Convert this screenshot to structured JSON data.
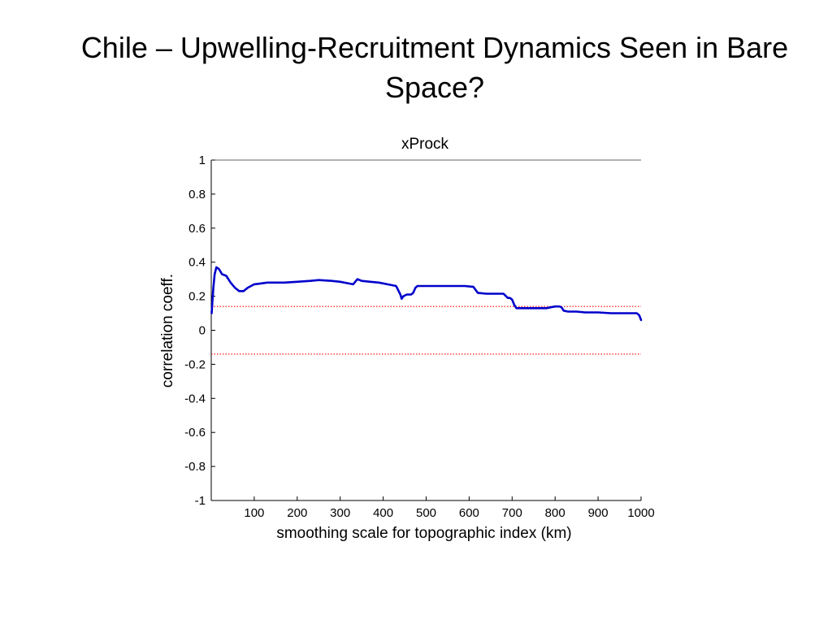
{
  "slide": {
    "title": "Chile – Upwelling-Recruitment Dynamics Seen in Bare Space?"
  },
  "chart_data": {
    "type": "line",
    "title": "xProck",
    "xlabel": "smoothing scale for topographic index (km)",
    "ylabel": "correlation coeff.",
    "xlim": [
      0,
      1000
    ],
    "ylim": [
      -1,
      1
    ],
    "xticks": [
      100,
      200,
      300,
      400,
      500,
      600,
      700,
      800,
      900,
      1000
    ],
    "yticks": [
      1,
      0.8,
      0.6,
      0.4,
      0.2,
      0,
      -0.2,
      -0.4,
      -0.6,
      -0.8,
      -1
    ],
    "xtick_labels": [
      "100",
      "200",
      "300",
      "400",
      "500",
      "600",
      "700",
      "800",
      "900",
      "1000"
    ],
    "ytick_labels": [
      "1",
      "0.8",
      "0.6",
      "0.4",
      "0.2",
      "0",
      "-0.2",
      "-0.4",
      "-0.6",
      "-0.8",
      "-1"
    ],
    "grid": false,
    "series": [
      {
        "color": "#0000cc",
        "x": [
          1,
          3,
          5,
          8,
          12,
          18,
          25,
          35,
          45,
          55,
          65,
          75,
          85,
          100,
          115,
          130,
          150,
          170,
          200,
          230,
          250,
          280,
          300,
          320,
          330,
          340,
          350,
          370,
          390,
          410,
          430,
          440,
          443,
          447,
          455,
          465,
          470,
          475,
          480,
          500,
          530,
          560,
          590,
          610,
          620,
          640,
          660,
          680,
          690,
          695,
          700,
          705,
          710,
          740,
          760,
          780,
          790,
          800,
          810,
          815,
          820,
          830,
          850,
          870,
          900,
          930,
          960,
          990,
          995,
          998,
          1000
        ],
        "y": [
          0.1,
          0.18,
          0.25,
          0.33,
          0.37,
          0.36,
          0.33,
          0.32,
          0.28,
          0.25,
          0.23,
          0.23,
          0.25,
          0.27,
          0.275,
          0.28,
          0.28,
          0.28,
          0.285,
          0.29,
          0.295,
          0.29,
          0.285,
          0.275,
          0.27,
          0.3,
          0.29,
          0.285,
          0.28,
          0.27,
          0.26,
          0.21,
          0.185,
          0.2,
          0.21,
          0.21,
          0.22,
          0.25,
          0.26,
          0.26,
          0.26,
          0.26,
          0.26,
          0.255,
          0.22,
          0.215,
          0.215,
          0.215,
          0.19,
          0.19,
          0.18,
          0.15,
          0.13,
          0.13,
          0.13,
          0.13,
          0.135,
          0.14,
          0.14,
          0.135,
          0.115,
          0.11,
          0.11,
          0.105,
          0.105,
          0.1,
          0.1,
          0.1,
          0.09,
          0.075,
          0.06
        ]
      }
    ],
    "reference_lines": [
      {
        "y": 0.14,
        "color": "#ff0000",
        "style": "dotted"
      },
      {
        "y": -0.14,
        "color": "#ff0000",
        "style": "dotted"
      }
    ],
    "top_line": {
      "y": 1,
      "color": "#666666"
    }
  }
}
